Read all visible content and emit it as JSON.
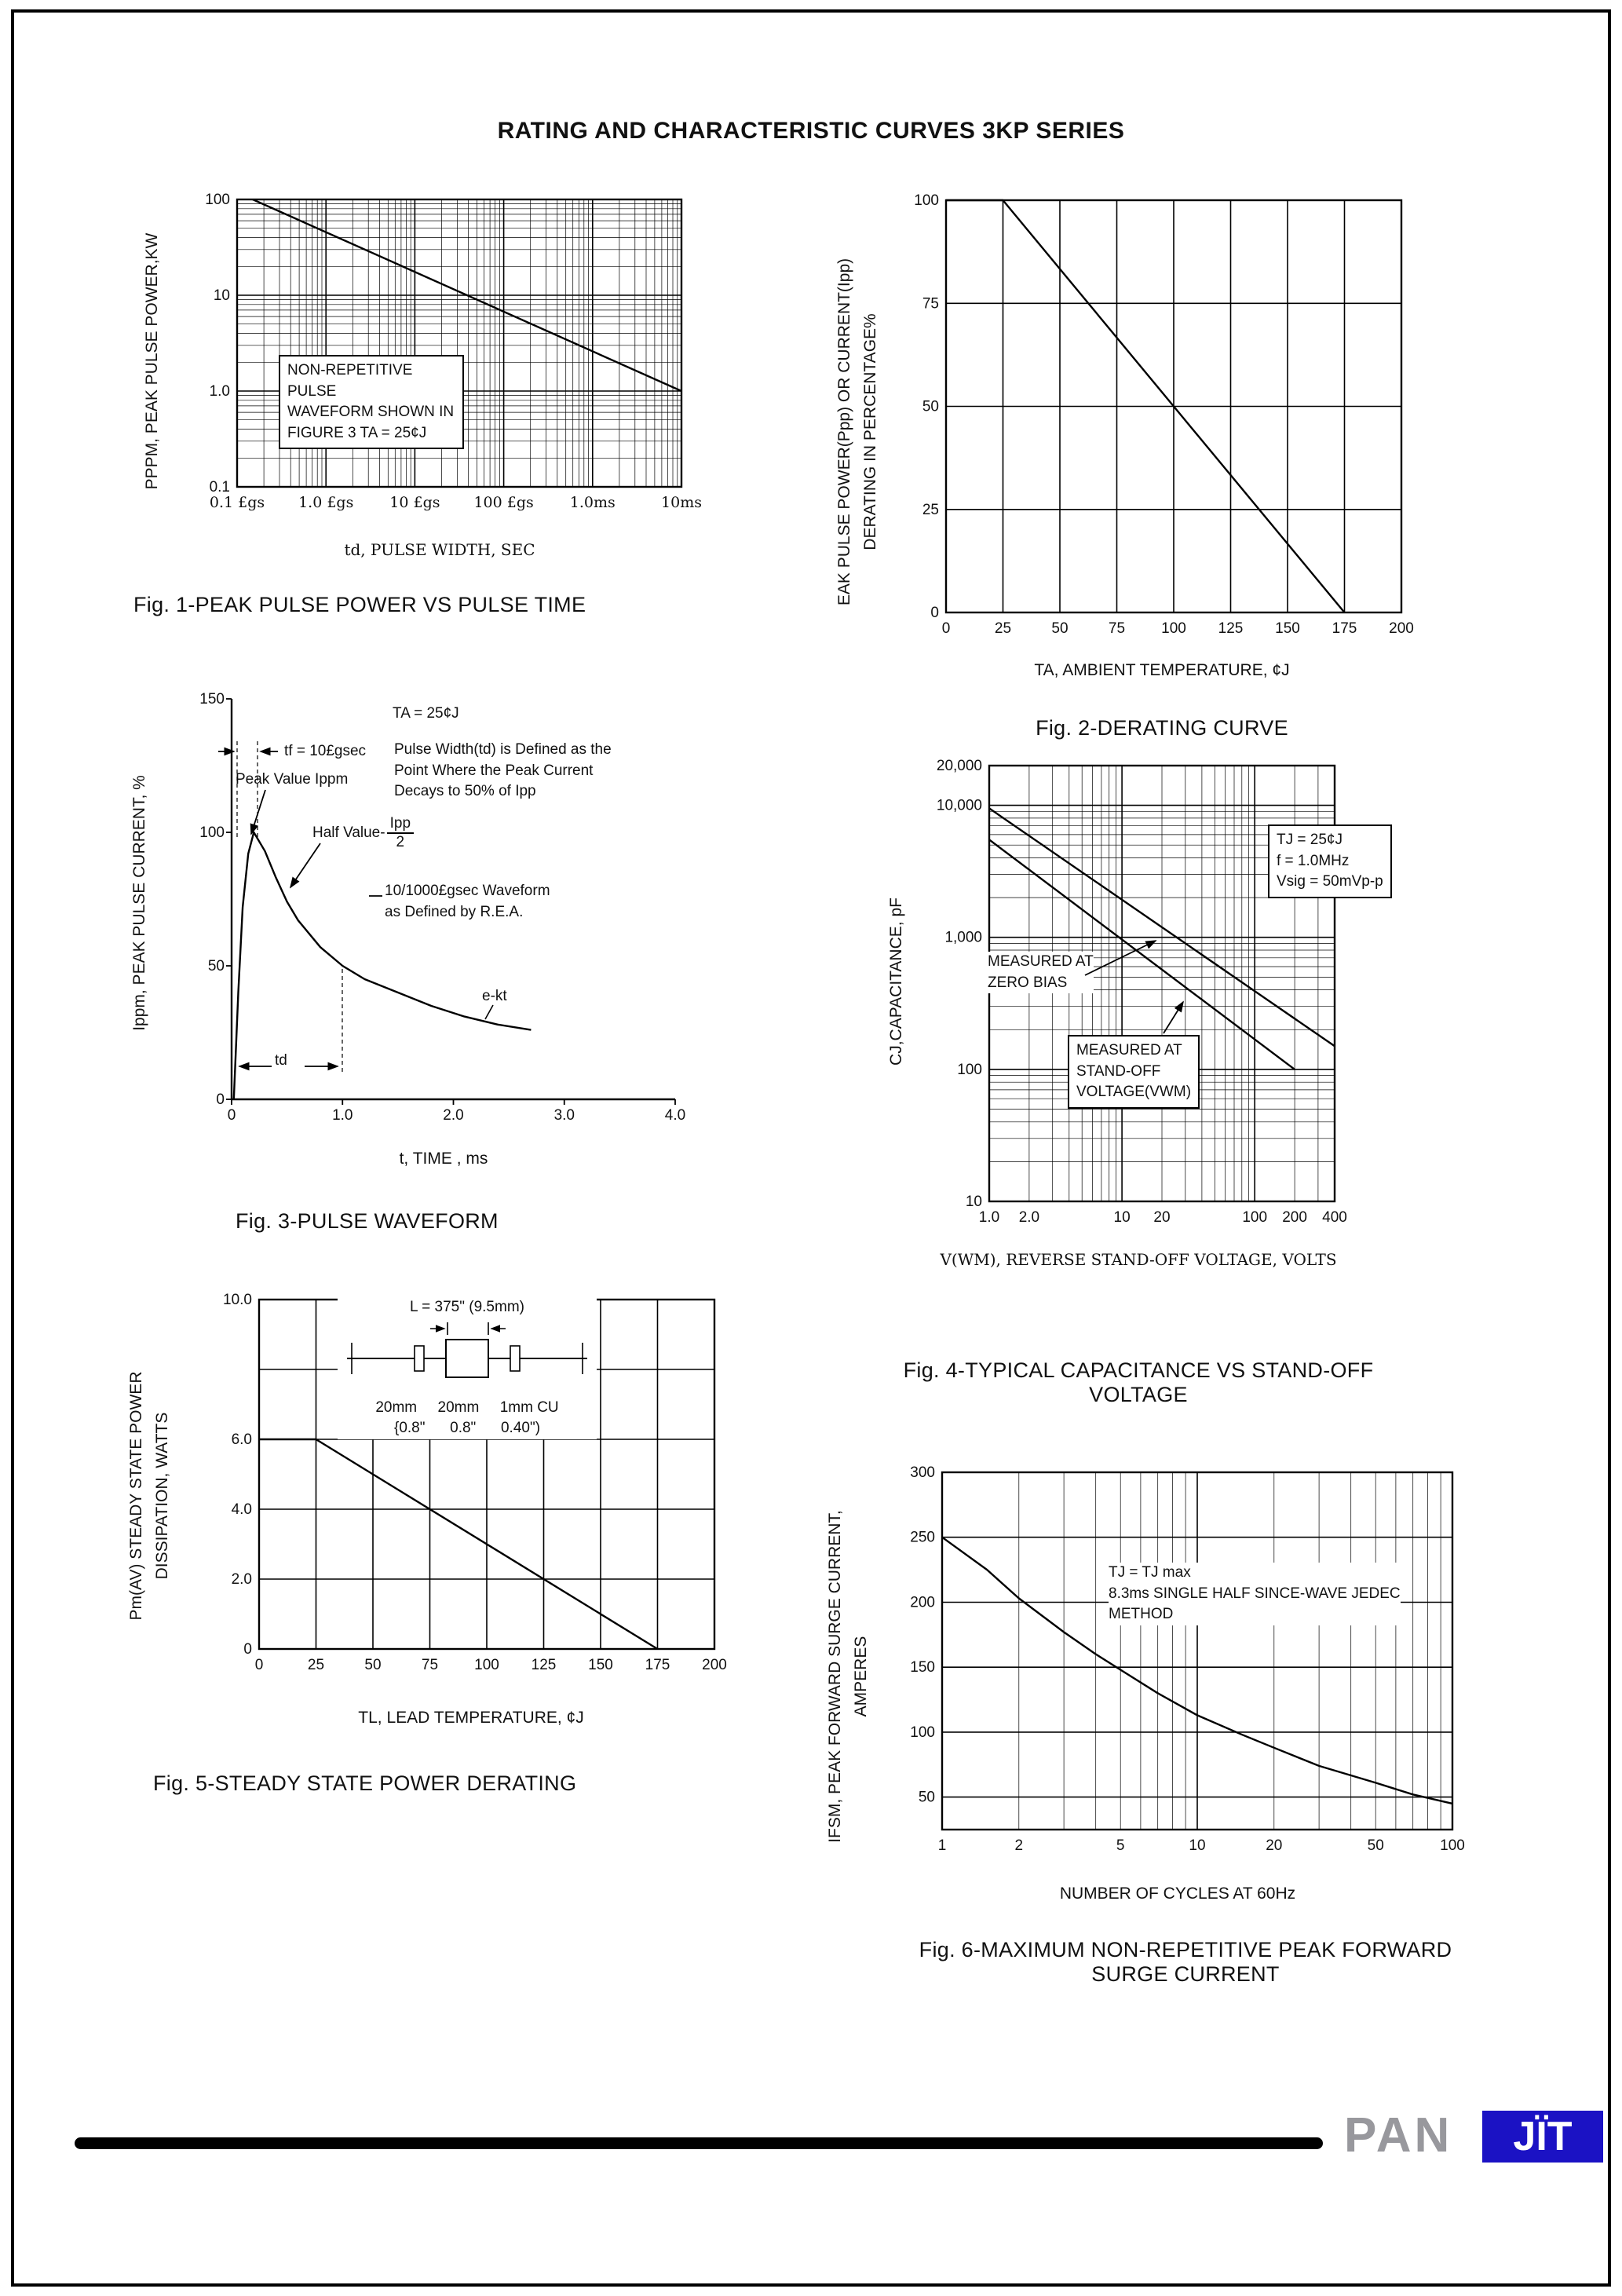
{
  "page": {
    "title": "RATING AND CHARACTERISTIC CURVES 3KP SERIES"
  },
  "footer": {
    "pan": "PAN",
    "jit": "JÏT"
  },
  "chart_data": [
    {
      "id": "fig1",
      "type": "line",
      "title": "Fig. 1-PEAK PULSE POWER VS PULSE TIME",
      "xlabel": "td, PULSE WIDTH, SEC",
      "ylabel": "PPPM, PEAK PULSE POWER,KW",
      "x_scale": "log",
      "y_scale": "log",
      "xlim": [
        1e-07,
        0.01
      ],
      "ylim": [
        0.1,
        100
      ],
      "x_ticks": [
        {
          "v": 1e-07,
          "t": "0.1 £gs"
        },
        {
          "v": 1e-06,
          "t": "1.0 £gs"
        },
        {
          "v": 1e-05,
          "t": "10 £gs"
        },
        {
          "v": 0.0001,
          "t": "100 £gs"
        },
        {
          "v": 0.001,
          "t": "1.0ms"
        },
        {
          "v": 0.01,
          "t": "10ms"
        }
      ],
      "y_ticks": [
        {
          "v": 100,
          "t": "100"
        },
        {
          "v": 10,
          "t": "10"
        },
        {
          "v": 1,
          "t": "1.0"
        },
        {
          "v": 0.1,
          "t": "0.1"
        }
      ],
      "x_tick_serif": true,
      "grid": true,
      "frame": "box",
      "margin": {
        "l": 62,
        "r": 12,
        "t": 14,
        "b": 50
      },
      "series": [
        {
          "name": "peak-pulse-power",
          "points": [
            [
              1.5e-07,
              100
            ],
            [
              0.01,
              1.0
            ]
          ]
        }
      ],
      "annotations": {
        "note": "NON-REPETITIVE PULSE\nWAVEFORM SHOWN IN\nFIGURE 3 TA = 25¢J"
      }
    },
    {
      "id": "fig2",
      "type": "line",
      "title": "Fig. 2-DERATING CURVE",
      "xlabel": "TA, AMBIENT TEMPERATURE, ¢J",
      "ylabel": "EAK PULSE POWER(Ppp) OR CURRENT(Ipp)\nDERATING IN PERCENTAGE%",
      "x_scale": "linear",
      "y_scale": "linear",
      "xlim": [
        0,
        200
      ],
      "ylim": [
        0,
        100
      ],
      "x_grid": [
        0,
        25,
        50,
        75,
        100,
        125,
        150,
        175,
        200
      ],
      "y_grid": [
        0,
        25,
        50,
        75,
        100
      ],
      "x_ticks": [
        {
          "v": 0,
          "t": "0"
        },
        {
          "v": 25,
          "t": "25"
        },
        {
          "v": 50,
          "t": "50"
        },
        {
          "v": 75,
          "t": "75"
        },
        {
          "v": 100,
          "t": "100"
        },
        {
          "v": 125,
          "t": "125"
        },
        {
          "v": 150,
          "t": "150"
        },
        {
          "v": 175,
          "t": "175"
        },
        {
          "v": 200,
          "t": "200"
        }
      ],
      "y_ticks": [
        {
          "v": 0,
          "t": "0"
        },
        {
          "v": 25,
          "t": "25"
        },
        {
          "v": 50,
          "t": "50"
        },
        {
          "v": 75,
          "t": "75"
        },
        {
          "v": 100,
          "t": "100"
        }
      ],
      "grid": true,
      "frame": "box",
      "margin": {
        "l": 55,
        "r": 25,
        "t": 15,
        "b": 50
      },
      "series": [
        {
          "name": "derating",
          "points": [
            [
              0,
              100
            ],
            [
              25,
              100
            ],
            [
              175,
              0
            ]
          ]
        }
      ],
      "annotations": {}
    },
    {
      "id": "fig3",
      "type": "line",
      "title": "Fig. 3-PULSE WAVEFORM",
      "xlabel": "t, TIME , ms",
      "ylabel": "Ippm, PEAK PULSE CURRENT, %",
      "x_scale": "linear",
      "y_scale": "linear",
      "xlim": [
        0,
        4
      ],
      "ylim": [
        0,
        150
      ],
      "x_ticks": [
        {
          "v": 0,
          "t": "0"
        },
        {
          "v": 1,
          "t": "1.0"
        },
        {
          "v": 2,
          "t": "2.0"
        },
        {
          "v": 3,
          "t": "3.0"
        },
        {
          "v": 4,
          "t": "4.0"
        }
      ],
      "y_ticks": [
        {
          "v": 0,
          "t": "0"
        },
        {
          "v": 50,
          "t": "50"
        },
        {
          "v": 100,
          "t": "100"
        },
        {
          "v": 150,
          "t": "150"
        }
      ],
      "grid": false,
      "frame": "axes",
      "margin": {
        "l": 55,
        "r": 30,
        "t": 20,
        "b": 50
      },
      "series": [
        {
          "name": "pulse-waveform",
          "points": [
            [
              0.02,
              0
            ],
            [
              0.06,
              40
            ],
            [
              0.1,
              72
            ],
            [
              0.15,
              92
            ],
            [
              0.2,
              100
            ],
            [
              0.3,
              93
            ],
            [
              0.4,
              83
            ],
            [
              0.5,
              74
            ],
            [
              0.6,
              67
            ],
            [
              0.8,
              57
            ],
            [
              1.0,
              50
            ],
            [
              1.2,
              45
            ],
            [
              1.5,
              40
            ],
            [
              1.8,
              35
            ],
            [
              2.1,
              31
            ],
            [
              2.4,
              28
            ],
            [
              2.7,
              26
            ]
          ]
        }
      ],
      "annotations": {
        "ta": "TA = 25¢J",
        "tf": "tf = 10£gsec",
        "def": "Pulse Width(td) is Defined as the\nPoint Where the Peak Current\nDecays to 50% of Ipp",
        "peak": "Peak Value Ippm",
        "half_label": "Half Value-",
        "half_num": "Ipp",
        "half_den": "2",
        "wave": "10/1000£gsec Waveform\nas Defined by R.E.A.",
        "ekt": "e-kt",
        "td": "td"
      }
    },
    {
      "id": "fig4",
      "type": "line",
      "title": "Fig. 4-TYPICAL CAPACITANCE VS STAND-OFF\nVOLTAGE",
      "xlabel": "V(WM), REVERSE STAND-OFF VOLTAGE, VOLTS",
      "ylabel": "CJ,CAPACITANCE, pF",
      "x_scale": "log",
      "y_scale": "log",
      "xlim": [
        1,
        400
      ],
      "ylim": [
        10,
        20000
      ],
      "x_ticks": [
        {
          "v": 1,
          "t": "1.0"
        },
        {
          "v": 2,
          "t": "2.0"
        },
        {
          "v": 10,
          "t": "10"
        },
        {
          "v": 20,
          "t": "20"
        },
        {
          "v": 100,
          "t": "100"
        },
        {
          "v": 200,
          "t": "200"
        },
        {
          "v": 400,
          "t": "400"
        }
      ],
      "y_ticks": [
        {
          "v": 10,
          "t": "10"
        },
        {
          "v": 100,
          "t": "100"
        },
        {
          "v": 1000,
          "t": "1,000"
        },
        {
          "v": 10000,
          "t": "10,000"
        },
        {
          "v": 20000,
          "t": "20,000"
        }
      ],
      "grid": true,
      "frame": "box",
      "margin": {
        "l": 80,
        "r": 20,
        "t": 15,
        "b": 50
      },
      "series": [
        {
          "name": "zero-bias",
          "points": [
            [
              1,
              9500
            ],
            [
              400,
              150
            ]
          ]
        },
        {
          "name": "stand-off-voltage",
          "points": [
            [
              1,
              5500
            ],
            [
              200,
              100
            ]
          ]
        }
      ],
      "annotations": {
        "cond": "TJ = 25¢J\nf = 1.0MHz\nVsig = 50mVp-p",
        "zero": "MEASURED AT\nZERO BIAS",
        "standoff": "MEASURED AT\nSTAND-OFF\nVOLTAGE(VWM)"
      }
    },
    {
      "id": "fig5",
      "type": "line",
      "title": "Fig. 5-STEADY STATE POWER DERATING",
      "xlabel": "TL, LEAD TEMPERATURE, ¢J",
      "ylabel": "Pm(AV) STEADY STATE POWER\nDISSIPATION, WATTS",
      "x_scale": "linear",
      "y_scale": "linear",
      "xlim": [
        0,
        200
      ],
      "ylim": [
        0,
        10
      ],
      "x_grid": [
        0,
        25,
        50,
        75,
        100,
        125,
        150,
        175,
        200
      ],
      "y_grid": [
        0,
        2,
        4,
        6,
        8,
        10
      ],
      "x_ticks": [
        {
          "v": 0,
          "t": "0"
        },
        {
          "v": 25,
          "t": "25"
        },
        {
          "v": 50,
          "t": "50"
        },
        {
          "v": 75,
          "t": "75"
        },
        {
          "v": 100,
          "t": "100"
        },
        {
          "v": 125,
          "t": "125"
        },
        {
          "v": 150,
          "t": "150"
        },
        {
          "v": 175,
          "t": "175"
        },
        {
          "v": 200,
          "t": "200"
        }
      ],
      "y_ticks": [
        {
          "v": 0,
          "t": "0"
        },
        {
          "v": 2,
          "t": "2.0"
        },
        {
          "v": 4,
          "t": "4.0"
        },
        {
          "v": 6,
          "t": "6.0"
        },
        {
          "v": 10,
          "t": "10.0"
        }
      ],
      "grid": true,
      "frame": "box",
      "margin": {
        "l": 60,
        "r": 20,
        "t": 15,
        "b": 50
      },
      "series": [
        {
          "name": "power-derating",
          "points": [
            [
              0,
              6
            ],
            [
              25,
              6
            ],
            [
              175,
              0
            ]
          ]
        }
      ],
      "annotations": {
        "l_label": "L = 375\" (9.5mm)",
        "dims": "20mm     20mm     1mm CU",
        "dims2": "{0.8\"      0.8\"      0.40\")"
      }
    },
    {
      "id": "fig6",
      "type": "line",
      "title": "Fig. 6-MAXIMUM NON-REPETITIVE PEAK FORWARD\nSURGE CURRENT",
      "xlabel": "NUMBER OF CYCLES AT 60Hz",
      "ylabel": "IFSM, PEAK FORWARD SURGE CURRENT,\nAMPERES",
      "x_scale": "log",
      "y_scale": "linear",
      "xlim": [
        1,
        100
      ],
      "ylim": [
        25,
        300
      ],
      "y_grid": [
        50,
        100,
        150,
        200,
        250,
        300
      ],
      "x_ticks": [
        {
          "v": 1,
          "t": "1"
        },
        {
          "v": 2,
          "t": "2"
        },
        {
          "v": 5,
          "t": "5"
        },
        {
          "v": 10,
          "t": "10"
        },
        {
          "v": 20,
          "t": "20"
        },
        {
          "v": 50,
          "t": "50"
        },
        {
          "v": 100,
          "t": "100"
        }
      ],
      "y_ticks": [
        {
          "v": 50,
          "t": "50"
        },
        {
          "v": 100,
          "t": "100"
        },
        {
          "v": 150,
          "t": "150"
        },
        {
          "v": 200,
          "t": "200"
        },
        {
          "v": 250,
          "t": "250"
        },
        {
          "v": 300,
          "t": "300"
        }
      ],
      "grid": true,
      "frame": "box",
      "margin": {
        "l": 70,
        "r": 20,
        "t": 15,
        "b": 50
      },
      "series": [
        {
          "name": "surge-current",
          "points": [
            [
              1,
              250
            ],
            [
              1.5,
              225
            ],
            [
              2,
              203
            ],
            [
              3,
              177
            ],
            [
              4,
              160
            ],
            [
              5,
              148
            ],
            [
              7,
              130
            ],
            [
              10,
              113
            ],
            [
              15,
              98
            ],
            [
              20,
              88
            ],
            [
              30,
              74
            ],
            [
              50,
              61
            ],
            [
              70,
              52
            ],
            [
              100,
              45
            ]
          ]
        }
      ],
      "annotations": {
        "cond": "TJ = TJ max\n8.3ms SINGLE HALF SINCE-WAVE JEDEC\nMETHOD"
      }
    }
  ]
}
